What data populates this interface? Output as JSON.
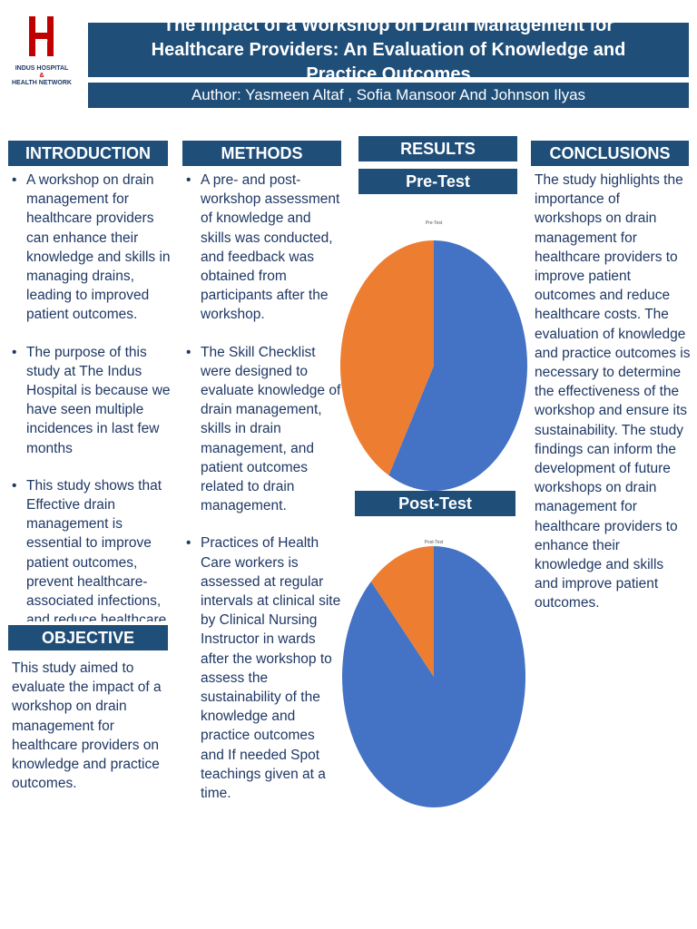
{
  "logo": {
    "line1": "INDUS HOSPITAL",
    "amp": "&",
    "line2": "HEALTH NETWORK",
    "color": "#c00000"
  },
  "title": "The Impact of a Workshop on Drain Management for Healthcare Providers: An Evaluation of Knowledge and Practice Outcomes",
  "author": "Author: Yasmeen Altaf , Sofia Mansoor And Johnson Ilyas",
  "introduction": {
    "heading": "INTRODUCTION",
    "bullets": [
      "A workshop on drain management for healthcare providers can enhance their knowledge and skills in managing drains, leading to improved patient outcomes.",
      "The purpose of this study at The Indus Hospital is because we have seen multiple incidences in last few months",
      "This study shows that Effective drain management is essential to improve patient outcomes, prevent healthcare-associated infections, and reduce healthcare"
    ]
  },
  "objective": {
    "heading": "OBJECTIVE",
    "text": "This study aimed to evaluate the impact of a workshop on drain management for healthcare providers on knowledge and practice outcomes."
  },
  "methods": {
    "heading": "METHODS",
    "bullets": [
      "A pre- and post-workshop assessment of knowledge and skills was conducted, and feedback was obtained from participants after the workshop.",
      "The Skill Checklist were designed to evaluate knowledge of drain management, skills in drain management, and patient outcomes related to drain management.",
      " Practices of Health Care workers is assessed at regular intervals at clinical site by Clinical Nursing Instructor in wards after the workshop to assess the sustainability of the knowledge and practice outcomes and If needed Spot teachings given at a time."
    ]
  },
  "results": {
    "heading": "RESULTS",
    "pre_label": "Pre-Test",
    "post_label": "Post-Test"
  },
  "chart_data": [
    {
      "type": "pie",
      "title": "Pre-Test",
      "values": [
        58,
        42
      ],
      "colors": [
        "#4472c4",
        "#ed7d31"
      ]
    },
    {
      "type": "pie",
      "title": "Post-Test",
      "values": [
        88,
        12
      ],
      "colors": [
        "#4472c4",
        "#ed7d31"
      ]
    }
  ],
  "conclusions": {
    "heading": "CONCLUSIONS",
    "text": "The study highlights the importance of workshops on drain management for healthcare providers to improve patient outcomes and reduce healthcare costs. The evaluation of knowledge and practice outcomes is necessary to determine the effectiveness of the workshop and ensure its sustainability. The study findings can inform the development of future workshops on drain management for healthcare providers to enhance their knowledge and skills and improve patient outcomes."
  },
  "colors": {
    "header_bg": "#1f4e79",
    "text": "#1f3864"
  }
}
